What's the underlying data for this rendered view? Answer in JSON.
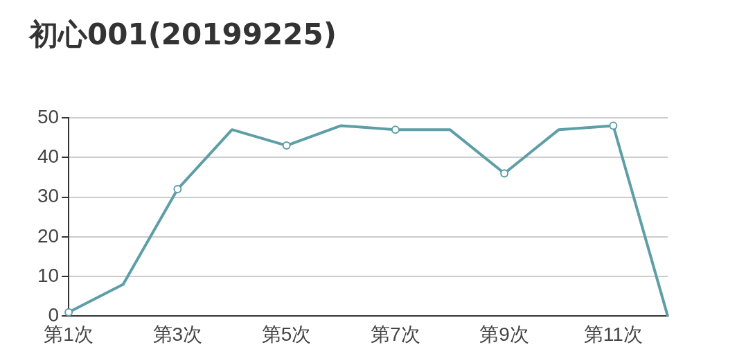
{
  "chart_data": {
    "type": "line",
    "title": "初心001(20199225)",
    "categories": [
      "第1次",
      null,
      "第3次",
      null,
      "第5次",
      null,
      "第7次",
      null,
      "第9次",
      null,
      "第11次",
      null
    ],
    "series": [
      {
        "color": "#5e9ea6",
        "values": [
          1,
          8,
          32,
          47,
          43,
          48,
          47,
          47,
          36,
          47,
          48,
          0
        ]
      }
    ],
    "ylim": [
      0,
      50
    ],
    "yticks": [
      0,
      10,
      20,
      30,
      40,
      50
    ],
    "grid": "y",
    "legend": false,
    "marker": "circle",
    "line_style": "solid"
  }
}
